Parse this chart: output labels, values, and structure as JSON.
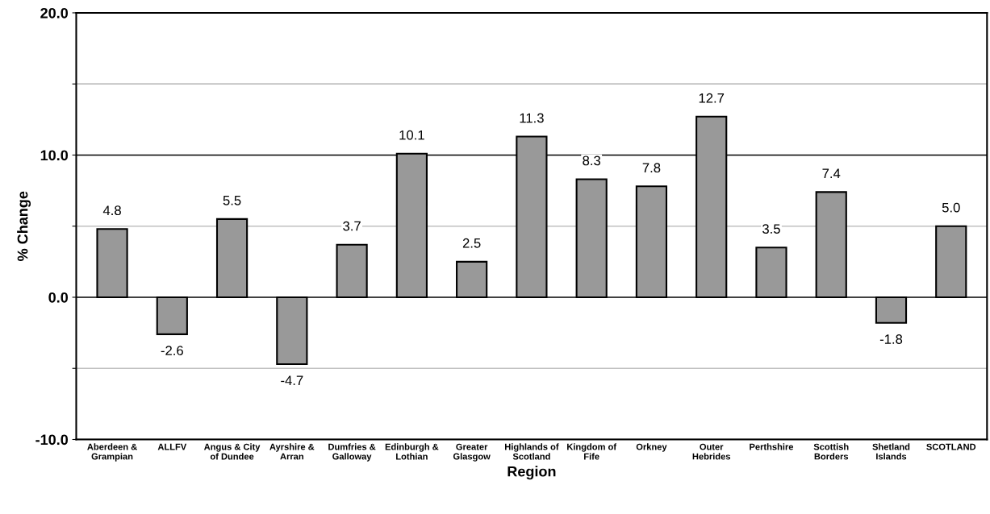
{
  "chart_data": {
    "type": "bar",
    "xlabel": "Region",
    "ylabel": "% Change",
    "categories": [
      "Aberdeen &\nGrampian",
      "ALLFV",
      "Angus & City\nof Dundee",
      "Ayrshire &\nArran",
      "Dumfries &\nGalloway",
      "Edinburgh &\nLothian",
      "Greater\nGlasgow",
      "Highlands of\nScotland",
      "Kingdom of\nFife",
      "Orkney",
      "Outer\nHebrides",
      "Perthshire",
      "Scottish\nBorders",
      "Shetland\nIslands",
      "SCOTLAND"
    ],
    "values": [
      4.8,
      -2.6,
      5.5,
      -4.7,
      3.7,
      10.1,
      2.5,
      11.3,
      8.3,
      7.8,
      12.7,
      3.5,
      7.4,
      -1.8,
      5.0
    ],
    "value_labels": [
      "4.8",
      "-2.6",
      "5.5",
      "-4.7",
      "3.7",
      "10.1",
      "2.5",
      "11.3",
      "8.3",
      "7.8",
      "12.7",
      "3.5",
      "7.4",
      "-1.8",
      "5.0"
    ],
    "color": "#999999",
    "grid": "y",
    "ylim": [
      -10,
      20
    ],
    "yticks": [
      {
        "value": -10,
        "label": "-10.0"
      },
      {
        "value": -5,
        "label": null
      },
      {
        "value": 0,
        "label": "0.0"
      },
      {
        "value": 5,
        "label": null
      },
      {
        "value": 10,
        "label": "10.0"
      },
      {
        "value": 15,
        "label": null
      },
      {
        "value": 20,
        "label": "20.0"
      }
    ]
  }
}
